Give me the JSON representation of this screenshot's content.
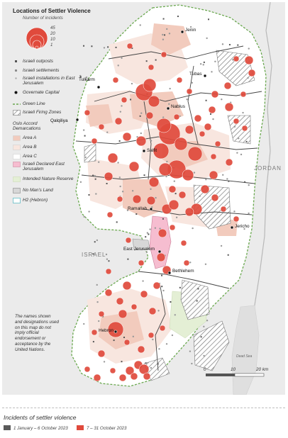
{
  "map": {
    "title": "Locations of Settler Violence",
    "incidents_label": "Number of incidents",
    "size_values": [
      "45",
      "20",
      "10",
      "1"
    ],
    "legend_items": [
      {
        "key": "outposts",
        "label": "Israeli outposts"
      },
      {
        "key": "settlements",
        "label": "Israeli settlements"
      },
      {
        "key": "installations",
        "label": "Israeli installations in East Jerusalem"
      },
      {
        "key": "governorate",
        "label": "Governate Capital"
      },
      {
        "key": "green_line",
        "label": "Green Line"
      },
      {
        "key": "firing_zones",
        "label": "Israeli Firing Zones"
      },
      {
        "key": "oslo",
        "label": "Oslo Accord Demarcations"
      },
      {
        "key": "area_a",
        "label": "Area A"
      },
      {
        "key": "area_b",
        "label": "Area B"
      },
      {
        "key": "area_c",
        "label": "Area C"
      },
      {
        "key": "ej",
        "label": "Israeli Declared East Jerusalem"
      },
      {
        "key": "nature",
        "label": "Intended Nature Reserve"
      },
      {
        "key": "nomans",
        "label": "No Man's Land"
      },
      {
        "key": "h2",
        "label": "H2 (Hebron)"
      }
    ],
    "places": {
      "jenin": "Jenin",
      "tubas": "Tubas",
      "tulkarm": "Tulkarm",
      "nablus": "Nablus",
      "qalqiliya": "Qalqiliya",
      "salfit": "Salfit",
      "ramallah": "Ramallah",
      "jericho": "Jericho",
      "east_jerusalem": "East Jerusalem",
      "bethlehem": "Bethlehem",
      "hebron": "Hebron"
    },
    "countries": {
      "jordan": "JORDAN",
      "israel": "ISRAEL"
    },
    "dead_sea": "Dead Sea",
    "disclaimer": "The names shown and designations used on this map do not imply official endorsement or acceptance by the United Nations.",
    "scale": {
      "zero": "0",
      "mid": "10",
      "end": "20 km"
    }
  },
  "footer": {
    "title": "Incidents of settler violence",
    "period1": "1 January – 6 October 2023",
    "period2": "7 – 31 October 2023"
  },
  "colors": {
    "incident_red": "#e04a3c",
    "period1_grey": "#5a5a5a",
    "area_a": "#f2cbbd",
    "area_b": "#f8e6df",
    "area_c": "#ffffff",
    "east_jerusalem": "#f6bdd0",
    "nature_reserve": "#e4efd5",
    "green_line": "#6aa84f",
    "h2": "#7fc7cf",
    "background": "#ebebeb"
  }
}
